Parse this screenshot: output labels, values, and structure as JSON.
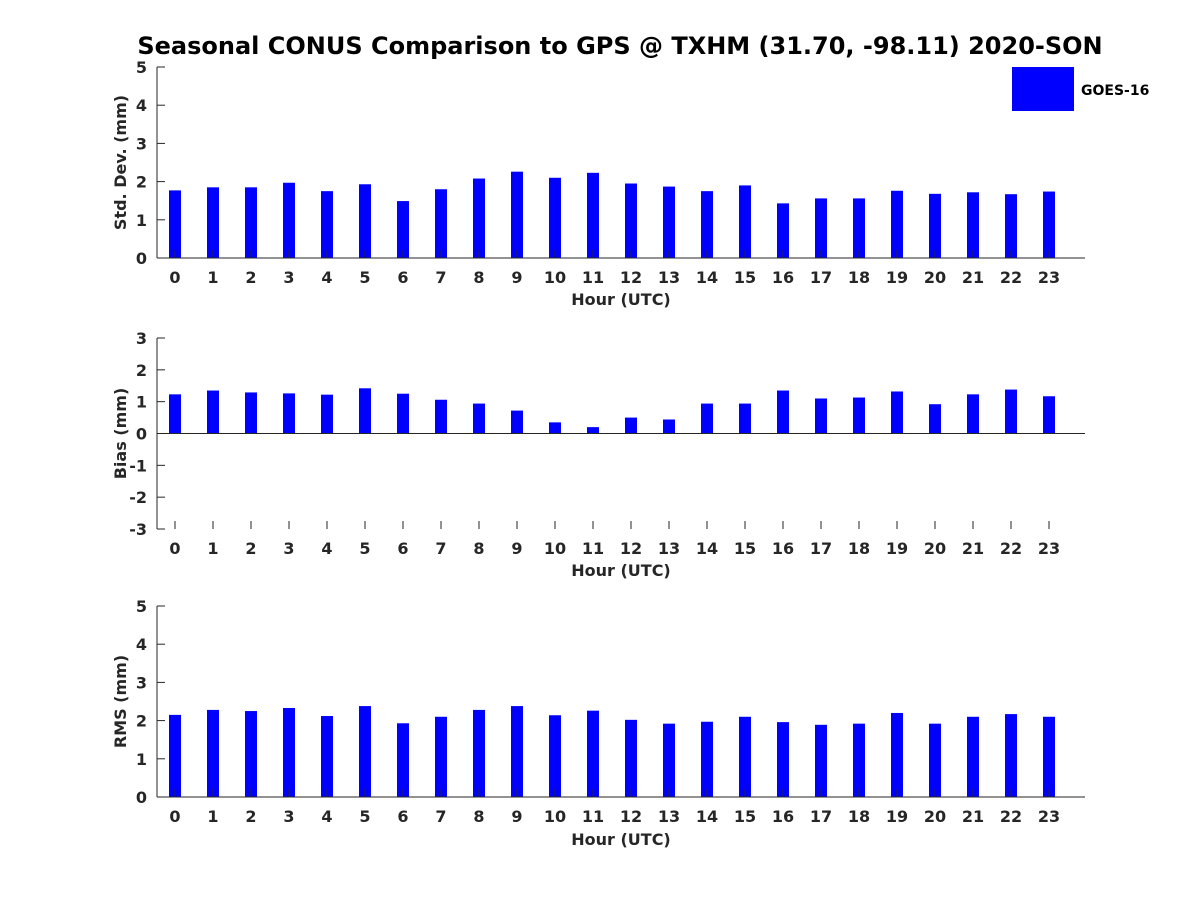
{
  "chart_data": {
    "title": "Seasonal CONUS Comparison to GPS @ TXHM (31.70, -98.11) 2020-SON",
    "legend": {
      "label": "GOES-16",
      "placement": "top-right",
      "color": "#0000ff"
    },
    "panels": [
      {
        "type": "bar",
        "ylabel": "Std. Dev. (mm)",
        "xlabel": "Hour (UTC)",
        "ylim": [
          0,
          5
        ],
        "yticks": [
          "0",
          "1",
          "2",
          "3",
          "4",
          "5"
        ],
        "categories": [
          "0",
          "1",
          "2",
          "3",
          "4",
          "5",
          "6",
          "7",
          "8",
          "9",
          "10",
          "11",
          "12",
          "13",
          "14",
          "15",
          "16",
          "17",
          "18",
          "19",
          "20",
          "21",
          "22",
          "23"
        ],
        "series": [
          {
            "name": "GOES-16",
            "values": [
              1.77,
              1.85,
              1.85,
              1.97,
              1.75,
              1.93,
              1.49,
              1.8,
              2.08,
              2.26,
              2.1,
              2.23,
              1.95,
              1.87,
              1.75,
              1.9,
              1.43,
              1.56,
              1.56,
              1.76,
              1.68,
              1.72,
              1.67,
              1.74
            ]
          }
        ]
      },
      {
        "type": "bar",
        "ylabel": "Bias (mm)",
        "xlabel": "Hour (UTC)",
        "ylim": [
          -3,
          3
        ],
        "yticks": [
          "-3",
          "-2",
          "-1",
          "0",
          "1",
          "2",
          "3"
        ],
        "categories": [
          "0",
          "1",
          "2",
          "3",
          "4",
          "5",
          "6",
          "7",
          "8",
          "9",
          "10",
          "11",
          "12",
          "13",
          "14",
          "15",
          "16",
          "17",
          "18",
          "19",
          "20",
          "21",
          "22",
          "23"
        ],
        "series": [
          {
            "name": "GOES-16",
            "values": [
              1.23,
              1.35,
              1.29,
              1.26,
              1.22,
              1.42,
              1.25,
              1.06,
              0.94,
              0.72,
              0.35,
              0.2,
              0.5,
              0.44,
              0.94,
              0.94,
              1.35,
              1.1,
              1.13,
              1.32,
              0.92,
              1.23,
              1.38,
              1.17
            ]
          }
        ]
      },
      {
        "type": "bar",
        "ylabel": "RMS (mm)",
        "xlabel": "Hour (UTC)",
        "ylim": [
          0,
          5
        ],
        "yticks": [
          "0",
          "1",
          "2",
          "3",
          "4",
          "5"
        ],
        "categories": [
          "0",
          "1",
          "2",
          "3",
          "4",
          "5",
          "6",
          "7",
          "8",
          "9",
          "10",
          "11",
          "12",
          "13",
          "14",
          "15",
          "16",
          "17",
          "18",
          "19",
          "20",
          "21",
          "22",
          "23"
        ],
        "series": [
          {
            "name": "GOES-16",
            "values": [
              2.15,
              2.28,
              2.25,
              2.33,
              2.12,
              2.38,
              1.93,
              2.1,
              2.28,
              2.38,
              2.14,
              2.26,
              2.02,
              1.92,
              1.97,
              2.1,
              1.96,
              1.89,
              1.92,
              2.2,
              1.92,
              2.1,
              2.17,
              2.1
            ]
          }
        ]
      }
    ]
  }
}
